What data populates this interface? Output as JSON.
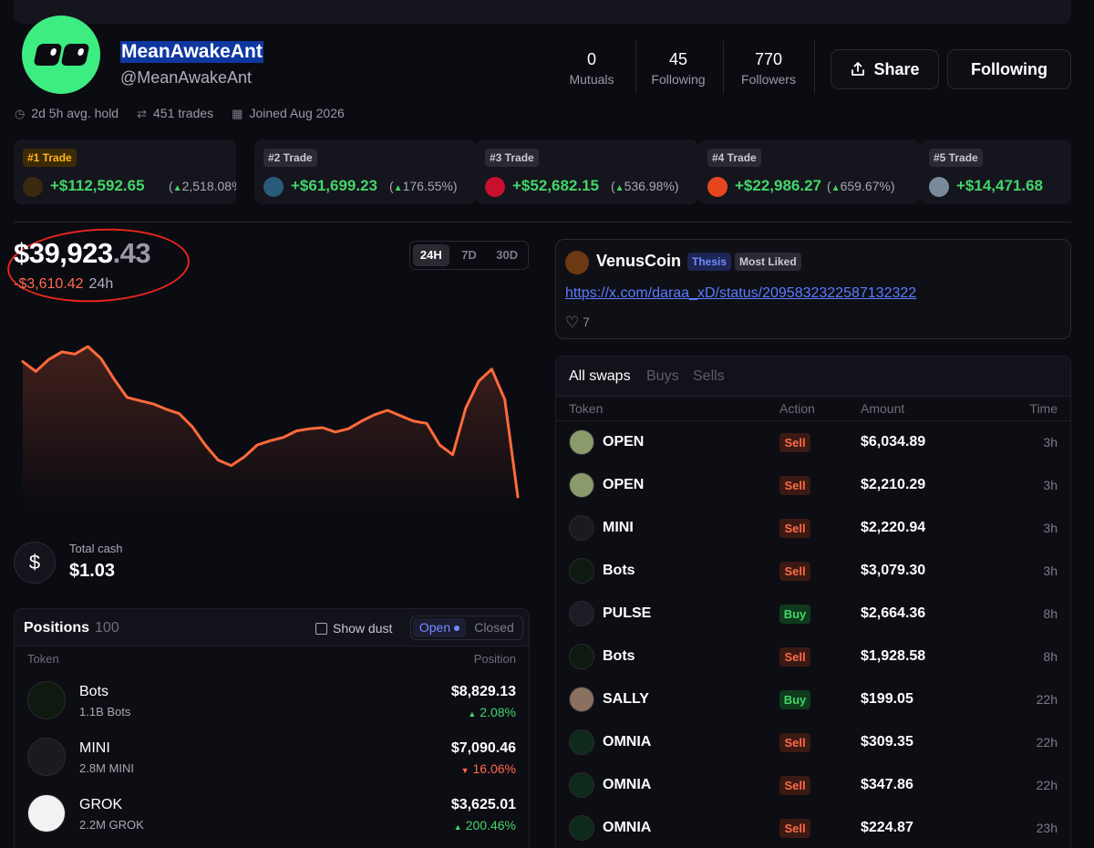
{
  "profile": {
    "name": "MeanAwakeAnt",
    "handle": "@MeanAwakeAnt",
    "avg_hold": "2d 5h avg. hold",
    "trades": "451 trades",
    "joined": "Joined Aug 2026",
    "mutuals": "0",
    "mutuals_label": "Mutuals",
    "following": "45",
    "following_label": "Following",
    "followers": "770",
    "followers_label": "Followers",
    "share_label": "Share",
    "follow_label": "Following"
  },
  "top_trades": [
    {
      "rank": "#1 Trade",
      "value": "+$112,592.65",
      "pct": "2,518.08%",
      "color": "#3a2a10"
    },
    {
      "rank": "#2 Trade",
      "value": "+$61,699.23",
      "pct": "176.55%",
      "color": "#2a5a7a"
    },
    {
      "rank": "#3 Trade",
      "value": "+$52,682.15",
      "pct": "536.98%",
      "color": "#c8102e"
    },
    {
      "rank": "#4 Trade",
      "value": "+$22,986.27",
      "pct": "659.67%",
      "color": "#e6461e"
    },
    {
      "rank": "#5 Trade",
      "value": "+$14,471.68",
      "pct": "",
      "color": "#7a8a9a"
    }
  ],
  "balance": {
    "whole": "$39,923",
    "decimal": ".43",
    "change": "-$3,610.42",
    "period": "24h",
    "ranges": [
      "24H",
      "7D",
      "30D"
    ],
    "active_range": "24H"
  },
  "chart_data": {
    "type": "area",
    "series": [
      {
        "values": [
          100.5,
          99.6,
          100.7,
          101.4,
          101.2,
          101.9,
          100.8,
          98.9,
          97.2,
          96.9,
          96.6,
          96.1,
          95.7,
          94.5,
          92.8,
          91.4,
          90.9,
          91.7,
          92.8,
          93.2,
          93.5,
          94.1,
          94.3,
          94.4,
          94.0,
          94.3,
          95.0,
          95.6,
          96.0,
          95.5,
          95.0,
          94.8,
          92.8,
          91.9,
          96.2,
          98.7,
          99.8,
          97.0,
          88.0
        ]
      }
    ],
    "color": "#ff6a3a"
  },
  "cash": {
    "label": "Total cash",
    "value": "$1.03",
    "icon": "dollar-icon"
  },
  "positions": {
    "title": "Positions",
    "count": "100",
    "show_dust": "Show dust",
    "open_label": "Open",
    "closed_label": "Closed",
    "col_token": "Token",
    "col_position": "Position",
    "items": [
      {
        "name": "Bots",
        "amount": "1.1B Bots",
        "value": "$8,829.13",
        "change": "2.08%",
        "dir": "up",
        "arrow": "▲",
        "color": "#0e1a10"
      },
      {
        "name": "MINI",
        "amount": "2.8M MINI",
        "value": "$7,090.46",
        "change": "16.06%",
        "dir": "down",
        "arrow": "▼",
        "color": "#1a1a20"
      },
      {
        "name": "GROK",
        "amount": "2.2M GROK",
        "value": "$3,625.01",
        "change": "200.46%",
        "dir": "up",
        "arrow": "▲",
        "color": "#f2f2f2"
      }
    ]
  },
  "post": {
    "author": "VenusCoin",
    "tag1": "Thesis",
    "tag2": "Most Liked",
    "link": "https://x.com/daraa_xD/status/2095832322587132322",
    "likes": "7"
  },
  "swaps": {
    "tabs": [
      "All swaps",
      "Buys",
      "Sells"
    ],
    "col_token": "Token",
    "col_action": "Action",
    "col_amount": "Amount",
    "col_time": "Time",
    "rows": [
      {
        "token": "OPEN",
        "action": "Sell",
        "amount": "$6,034.89",
        "time": "3h",
        "color": "#8a9a6a"
      },
      {
        "token": "OPEN",
        "action": "Sell",
        "amount": "$2,210.29",
        "time": "3h",
        "color": "#8a9a6a"
      },
      {
        "token": "MINI",
        "action": "Sell",
        "amount": "$2,220.94",
        "time": "3h",
        "color": "#1a1a20"
      },
      {
        "token": "Bots",
        "action": "Sell",
        "amount": "$3,079.30",
        "time": "3h",
        "color": "#0e1a10"
      },
      {
        "token": "PULSE",
        "action": "Buy",
        "amount": "$2,664.36",
        "time": "8h",
        "color": "#1d1d26"
      },
      {
        "token": "Bots",
        "action": "Sell",
        "amount": "$1,928.58",
        "time": "8h",
        "color": "#0e1a10"
      },
      {
        "token": "SALLY",
        "action": "Buy",
        "amount": "$199.05",
        "time": "22h",
        "color": "#8a7060"
      },
      {
        "token": "OMNIA",
        "action": "Sell",
        "amount": "$309.35",
        "time": "22h",
        "color": "#0e2a1a"
      },
      {
        "token": "OMNIA",
        "action": "Sell",
        "amount": "$347.86",
        "time": "22h",
        "color": "#0e2a1a"
      },
      {
        "token": "OMNIA",
        "action": "Sell",
        "amount": "$224.87",
        "time": "23h",
        "color": "#0e2a1a"
      }
    ]
  }
}
